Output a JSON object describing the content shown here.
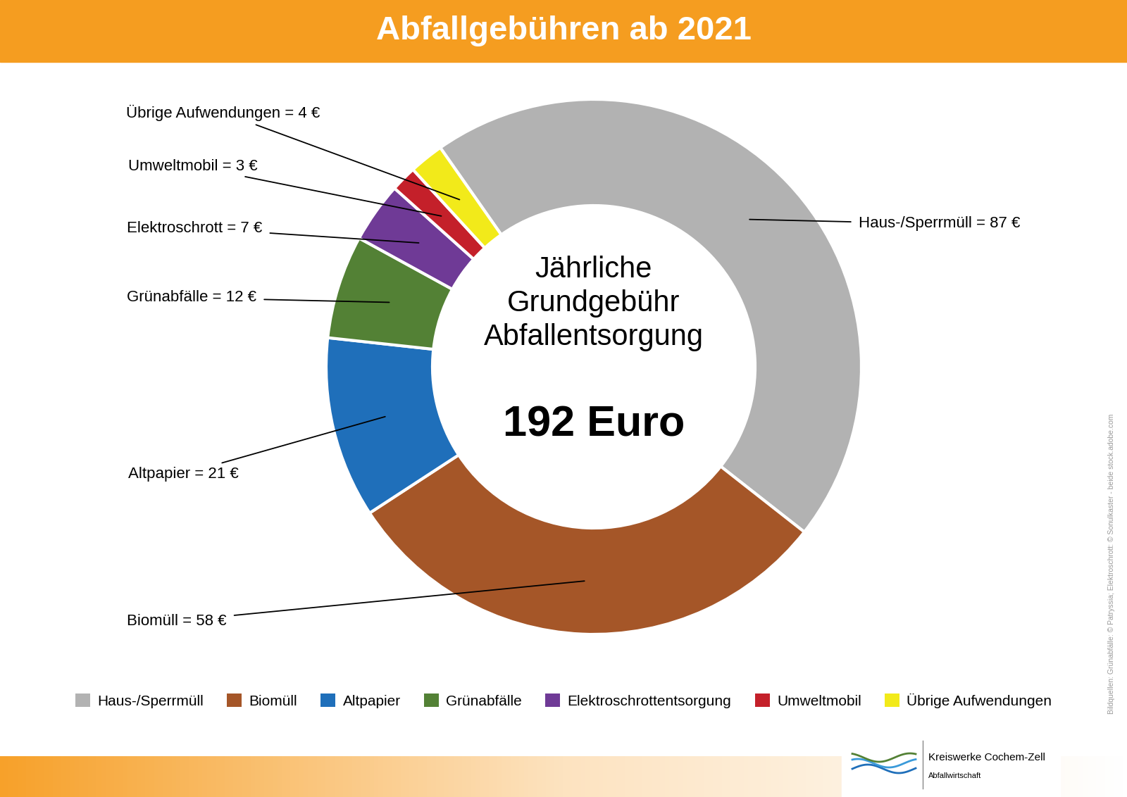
{
  "chart_data": {
    "type": "donut",
    "title": "Abfallgebühren ab 2021",
    "center_text": "Jährliche Grundgebühr Abfallentsorgung",
    "total": {
      "value": 192,
      "label": "192 Euro"
    },
    "categories": [
      "Haus-/Sperrmüll",
      "Biomüll",
      "Altpapier",
      "Grünabfälle",
      "Elektroschrottentsorgung",
      "Umweltmobil",
      "Übrige Aufwendungen"
    ],
    "values": [
      87,
      58,
      21,
      12,
      7,
      3,
      4
    ],
    "value_labels": [
      "Haus-/Sperrmüll = 87 €",
      "Biomüll = 58 €",
      "Altpapier = 21 €",
      "Grünabfälle = 12 €",
      "Elektroschrott = 7 €",
      "Umweltmobil = 3 €",
      "Übrige Aufwendungen = 4 €"
    ],
    "colors": [
      "#b2b2b2",
      "#a55628",
      "#1f6fba",
      "#538135",
      "#6f3a96",
      "#c4202a",
      "#f2ea1a"
    ],
    "data_labels": true,
    "legend": "lower center"
  },
  "credits": "Bildquellen: Grünabfälle: © Patryssia; Elektroschrott: © Sonulkaster - beide stock.adobe.com",
  "publisher": {
    "name": "Kreiswerke Cochem-Zell",
    "department": "Abfallwirtschaft"
  }
}
